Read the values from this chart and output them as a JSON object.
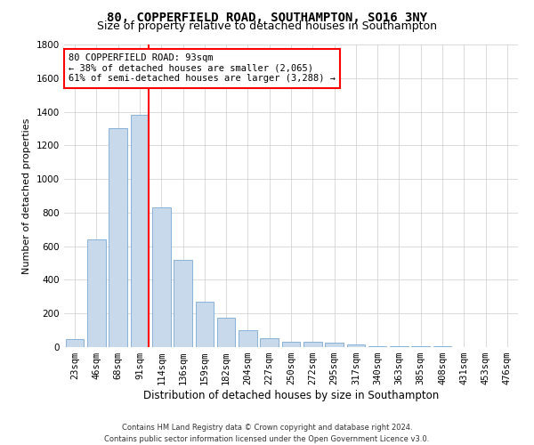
{
  "title": "80, COPPERFIELD ROAD, SOUTHAMPTON, SO16 3NY",
  "subtitle": "Size of property relative to detached houses in Southampton",
  "xlabel": "Distribution of detached houses by size in Southampton",
  "ylabel": "Number of detached properties",
  "footer_line1": "Contains HM Land Registry data © Crown copyright and database right 2024.",
  "footer_line2": "Contains public sector information licensed under the Open Government Licence v3.0.",
  "categories": [
    "23sqm",
    "46sqm",
    "68sqm",
    "91sqm",
    "114sqm",
    "136sqm",
    "159sqm",
    "182sqm",
    "204sqm",
    "227sqm",
    "250sqm",
    "272sqm",
    "295sqm",
    "317sqm",
    "340sqm",
    "363sqm",
    "385sqm",
    "408sqm",
    "431sqm",
    "453sqm",
    "476sqm"
  ],
  "values": [
    50,
    640,
    1300,
    1380,
    830,
    520,
    270,
    175,
    100,
    55,
    30,
    30,
    25,
    15,
    5,
    5,
    5,
    5,
    2,
    1,
    1
  ],
  "bar_color": "#c9d9ec",
  "bar_edgecolor": "#7aa8d2",
  "vline_bar_index": 3,
  "annotation_line1": "80 COPPERFIELD ROAD: 93sqm",
  "annotation_line2": "← 38% of detached houses are smaller (2,065)",
  "annotation_line3": "61% of semi-detached houses are larger (3,288) →",
  "annotation_box_color": "white",
  "annotation_box_edgecolor": "red",
  "vline_color": "red",
  "ylim": [
    0,
    1800
  ],
  "yticks": [
    0,
    200,
    400,
    600,
    800,
    1000,
    1200,
    1400,
    1600,
    1800
  ],
  "grid_color": "#cccccc",
  "background_color": "white",
  "title_fontsize": 10,
  "subtitle_fontsize": 9,
  "xlabel_fontsize": 8.5,
  "ylabel_fontsize": 8,
  "tick_fontsize": 7.5,
  "annotation_fontsize": 7.5,
  "footer_fontsize": 6
}
